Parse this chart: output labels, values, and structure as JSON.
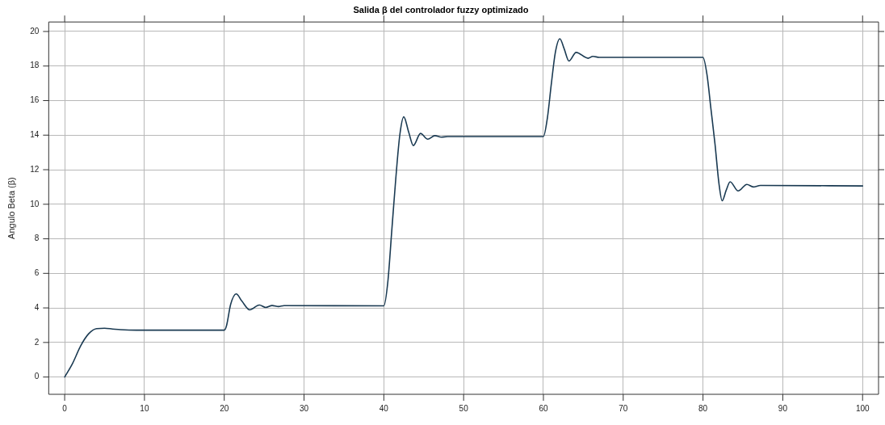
{
  "chart_data": {
    "type": "line",
    "title": "Salida β del controlador fuzzy optimizado",
    "ylabel": "Angulo Beta (β)",
    "xlim": [
      -2,
      102
    ],
    "ylim": [
      -1,
      20.55
    ],
    "xticks": [
      0,
      10,
      20,
      30,
      40,
      50,
      60,
      70,
      80,
      90,
      100
    ],
    "yticks": [
      0,
      2,
      4,
      6,
      8,
      10,
      12,
      14,
      16,
      18,
      20
    ],
    "grid": true,
    "legend": false,
    "marker": "none",
    "line_style": "solid",
    "series": [
      {
        "color": "#1a3a52",
        "x": [
          0,
          1,
          2,
          3,
          4,
          5,
          6,
          7,
          9,
          20,
          20.3,
          20.8,
          21.5,
          22.2,
          23.2,
          24.4,
          25.2,
          26,
          26.8,
          27.5,
          40,
          40.5,
          41,
          41.5,
          42,
          42.5,
          43.1,
          43.7,
          44.6,
          45.5,
          46.4,
          47.2,
          48,
          60,
          60.5,
          61,
          61.5,
          62.06,
          62.6,
          63.2,
          64.1,
          65.6,
          66.2,
          67,
          80,
          80.5,
          81,
          81.5,
          82,
          82.4,
          82.9,
          83.4,
          84.4,
          85.5,
          86.3,
          87.2,
          100
        ],
        "values": [
          0,
          0.8,
          1.8,
          2.5,
          2.8,
          2.82,
          2.78,
          2.74,
          2.71,
          2.71,
          3.0,
          4.2,
          4.81,
          4.4,
          3.89,
          4.17,
          4.03,
          4.14,
          4.08,
          4.13,
          4.12,
          5.5,
          8.5,
          11.5,
          14,
          15.06,
          14.2,
          13.4,
          14.1,
          13.77,
          13.97,
          13.88,
          13.92,
          13.92,
          15,
          17,
          18.8,
          19.58,
          19.0,
          18.29,
          18.79,
          18.45,
          18.56,
          18.5,
          18.5,
          17.5,
          15.5,
          13.5,
          11.2,
          10.2,
          10.8,
          11.3,
          10.77,
          11.15,
          11.0,
          11.09,
          11.06
        ]
      }
    ]
  }
}
